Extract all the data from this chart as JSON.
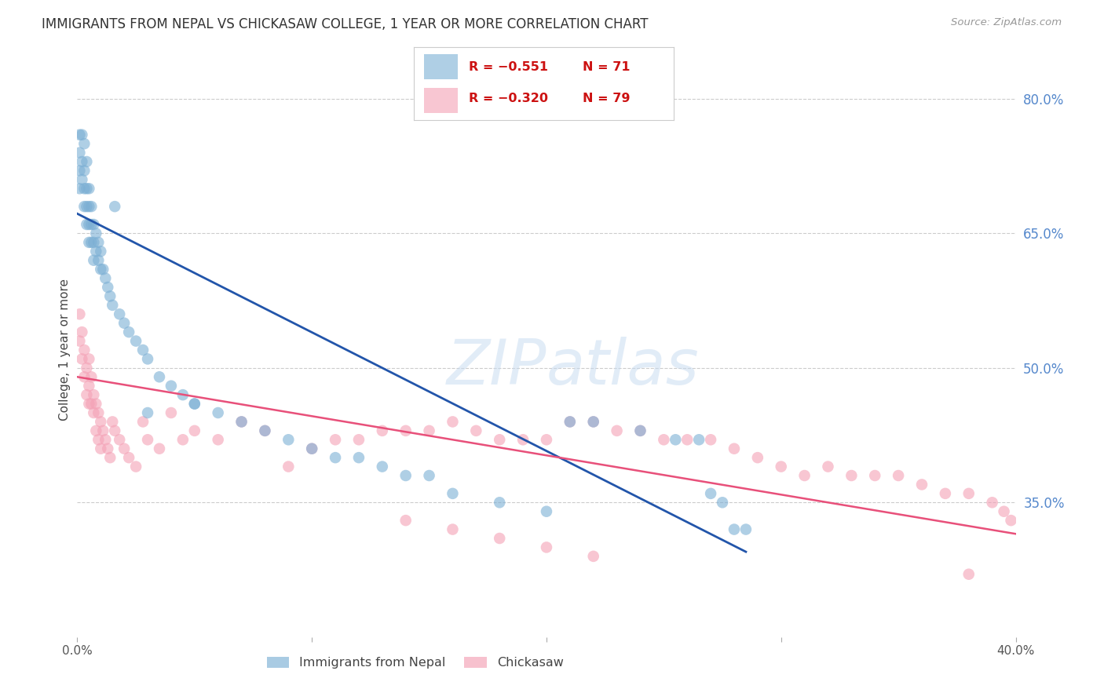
{
  "title": "IMMIGRANTS FROM NEPAL VS CHICKASAW COLLEGE, 1 YEAR OR MORE CORRELATION CHART",
  "source": "Source: ZipAtlas.com",
  "ylabel": "College, 1 year or more",
  "xlim": [
    0.0,
    0.4
  ],
  "ylim": [
    0.2,
    0.84
  ],
  "y_tick_labels_right": [
    "80.0%",
    "65.0%",
    "50.0%",
    "35.0%"
  ],
  "y_tick_positions_right": [
    0.8,
    0.65,
    0.5,
    0.35
  ],
  "grid_color": "#cccccc",
  "background_color": "#ffffff",
  "watermark_zip": "ZIP",
  "watermark_atlas": "atlas",
  "legend_text_r1": "R = −0.551",
  "legend_text_n1": "N = 71",
  "legend_text_r2": "R = −0.320",
  "legend_text_n2": "N = 79",
  "blue_color": "#7bafd4",
  "pink_color": "#f4a0b5",
  "blue_line_color": "#2255aa",
  "pink_line_color": "#e8507a",
  "blue_line_x": [
    0.0,
    0.285
  ],
  "blue_line_y": [
    0.672,
    0.295
  ],
  "pink_line_x": [
    0.0,
    0.4
  ],
  "pink_line_y": [
    0.49,
    0.315
  ],
  "blue_scatter_x": [
    0.001,
    0.001,
    0.001,
    0.001,
    0.002,
    0.002,
    0.002,
    0.003,
    0.003,
    0.003,
    0.003,
    0.004,
    0.004,
    0.004,
    0.004,
    0.005,
    0.005,
    0.005,
    0.005,
    0.006,
    0.006,
    0.006,
    0.007,
    0.007,
    0.007,
    0.008,
    0.008,
    0.009,
    0.009,
    0.01,
    0.01,
    0.011,
    0.012,
    0.013,
    0.014,
    0.015,
    0.016,
    0.018,
    0.02,
    0.022,
    0.025,
    0.028,
    0.03,
    0.035,
    0.04,
    0.045,
    0.05,
    0.06,
    0.07,
    0.08,
    0.09,
    0.1,
    0.11,
    0.12,
    0.13,
    0.14,
    0.15,
    0.16,
    0.18,
    0.2,
    0.21,
    0.22,
    0.24,
    0.255,
    0.265,
    0.27,
    0.275,
    0.28,
    0.285,
    0.03,
    0.05
  ],
  "blue_scatter_y": [
    0.76,
    0.74,
    0.72,
    0.7,
    0.76,
    0.73,
    0.71,
    0.75,
    0.72,
    0.7,
    0.68,
    0.73,
    0.7,
    0.68,
    0.66,
    0.7,
    0.68,
    0.66,
    0.64,
    0.68,
    0.66,
    0.64,
    0.66,
    0.64,
    0.62,
    0.65,
    0.63,
    0.64,
    0.62,
    0.63,
    0.61,
    0.61,
    0.6,
    0.59,
    0.58,
    0.57,
    0.68,
    0.56,
    0.55,
    0.54,
    0.53,
    0.52,
    0.51,
    0.49,
    0.48,
    0.47,
    0.46,
    0.45,
    0.44,
    0.43,
    0.42,
    0.41,
    0.4,
    0.4,
    0.39,
    0.38,
    0.38,
    0.36,
    0.35,
    0.34,
    0.44,
    0.44,
    0.43,
    0.42,
    0.42,
    0.36,
    0.35,
    0.32,
    0.32,
    0.45,
    0.46
  ],
  "pink_scatter_x": [
    0.001,
    0.001,
    0.002,
    0.002,
    0.003,
    0.003,
    0.004,
    0.004,
    0.005,
    0.005,
    0.005,
    0.006,
    0.006,
    0.007,
    0.007,
    0.008,
    0.008,
    0.009,
    0.009,
    0.01,
    0.01,
    0.011,
    0.012,
    0.013,
    0.014,
    0.015,
    0.016,
    0.018,
    0.02,
    0.022,
    0.025,
    0.028,
    0.03,
    0.035,
    0.04,
    0.045,
    0.05,
    0.06,
    0.07,
    0.08,
    0.09,
    0.1,
    0.11,
    0.12,
    0.13,
    0.14,
    0.15,
    0.16,
    0.17,
    0.18,
    0.19,
    0.2,
    0.21,
    0.22,
    0.23,
    0.24,
    0.25,
    0.26,
    0.27,
    0.28,
    0.29,
    0.3,
    0.31,
    0.32,
    0.33,
    0.34,
    0.35,
    0.36,
    0.37,
    0.38,
    0.39,
    0.395,
    0.398,
    0.14,
    0.16,
    0.18,
    0.2,
    0.22,
    0.38
  ],
  "pink_scatter_y": [
    0.56,
    0.53,
    0.54,
    0.51,
    0.52,
    0.49,
    0.5,
    0.47,
    0.48,
    0.51,
    0.46,
    0.49,
    0.46,
    0.47,
    0.45,
    0.46,
    0.43,
    0.45,
    0.42,
    0.44,
    0.41,
    0.43,
    0.42,
    0.41,
    0.4,
    0.44,
    0.43,
    0.42,
    0.41,
    0.4,
    0.39,
    0.44,
    0.42,
    0.41,
    0.45,
    0.42,
    0.43,
    0.42,
    0.44,
    0.43,
    0.39,
    0.41,
    0.42,
    0.42,
    0.43,
    0.43,
    0.43,
    0.44,
    0.43,
    0.42,
    0.42,
    0.42,
    0.44,
    0.44,
    0.43,
    0.43,
    0.42,
    0.42,
    0.42,
    0.41,
    0.4,
    0.39,
    0.38,
    0.39,
    0.38,
    0.38,
    0.38,
    0.37,
    0.36,
    0.36,
    0.35,
    0.34,
    0.33,
    0.33,
    0.32,
    0.31,
    0.3,
    0.29,
    0.27
  ]
}
